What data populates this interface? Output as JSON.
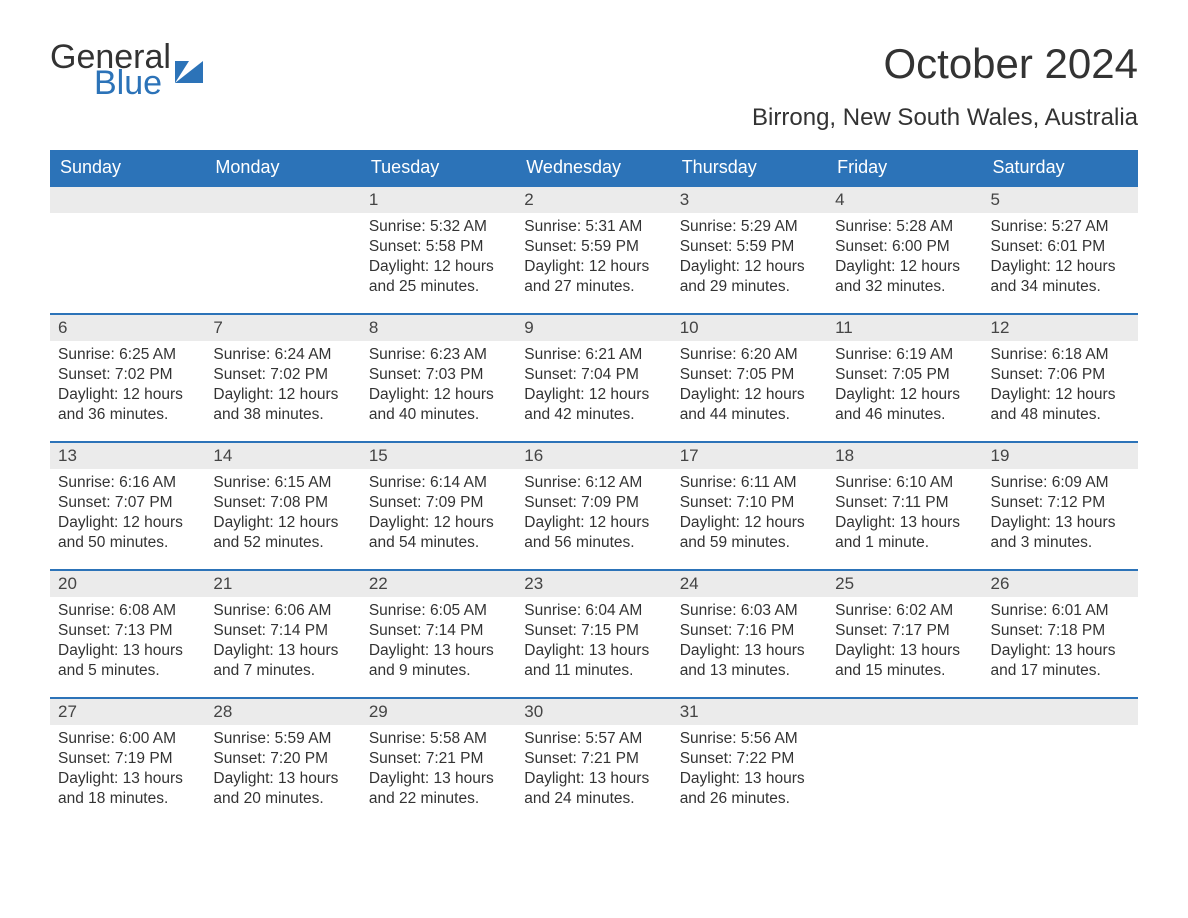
{
  "logo": {
    "word1": "General",
    "word2": "Blue"
  },
  "title": "October 2024",
  "location": "Birrong, New South Wales, Australia",
  "colors": {
    "header_bg": "#2c73b8",
    "header_text": "#ffffff",
    "daynum_bg": "#ebebeb",
    "top_rule": "#2c73b8",
    "body_text": "#333333",
    "page_bg": "#ffffff"
  },
  "day_headers": [
    "Sunday",
    "Monday",
    "Tuesday",
    "Wednesday",
    "Thursday",
    "Friday",
    "Saturday"
  ],
  "weeks": [
    [
      null,
      null,
      {
        "n": "1",
        "sunrise": "Sunrise: 5:32 AM",
        "sunset": "Sunset: 5:58 PM",
        "daylight": "Daylight: 12 hours and 25 minutes."
      },
      {
        "n": "2",
        "sunrise": "Sunrise: 5:31 AM",
        "sunset": "Sunset: 5:59 PM",
        "daylight": "Daylight: 12 hours and 27 minutes."
      },
      {
        "n": "3",
        "sunrise": "Sunrise: 5:29 AM",
        "sunset": "Sunset: 5:59 PM",
        "daylight": "Daylight: 12 hours and 29 minutes."
      },
      {
        "n": "4",
        "sunrise": "Sunrise: 5:28 AM",
        "sunset": "Sunset: 6:00 PM",
        "daylight": "Daylight: 12 hours and 32 minutes."
      },
      {
        "n": "5",
        "sunrise": "Sunrise: 5:27 AM",
        "sunset": "Sunset: 6:01 PM",
        "daylight": "Daylight: 12 hours and 34 minutes."
      }
    ],
    [
      {
        "n": "6",
        "sunrise": "Sunrise: 6:25 AM",
        "sunset": "Sunset: 7:02 PM",
        "daylight": "Daylight: 12 hours and 36 minutes."
      },
      {
        "n": "7",
        "sunrise": "Sunrise: 6:24 AM",
        "sunset": "Sunset: 7:02 PM",
        "daylight": "Daylight: 12 hours and 38 minutes."
      },
      {
        "n": "8",
        "sunrise": "Sunrise: 6:23 AM",
        "sunset": "Sunset: 7:03 PM",
        "daylight": "Daylight: 12 hours and 40 minutes."
      },
      {
        "n": "9",
        "sunrise": "Sunrise: 6:21 AM",
        "sunset": "Sunset: 7:04 PM",
        "daylight": "Daylight: 12 hours and 42 minutes."
      },
      {
        "n": "10",
        "sunrise": "Sunrise: 6:20 AM",
        "sunset": "Sunset: 7:05 PM",
        "daylight": "Daylight: 12 hours and 44 minutes."
      },
      {
        "n": "11",
        "sunrise": "Sunrise: 6:19 AM",
        "sunset": "Sunset: 7:05 PM",
        "daylight": "Daylight: 12 hours and 46 minutes."
      },
      {
        "n": "12",
        "sunrise": "Sunrise: 6:18 AM",
        "sunset": "Sunset: 7:06 PM",
        "daylight": "Daylight: 12 hours and 48 minutes."
      }
    ],
    [
      {
        "n": "13",
        "sunrise": "Sunrise: 6:16 AM",
        "sunset": "Sunset: 7:07 PM",
        "daylight": "Daylight: 12 hours and 50 minutes."
      },
      {
        "n": "14",
        "sunrise": "Sunrise: 6:15 AM",
        "sunset": "Sunset: 7:08 PM",
        "daylight": "Daylight: 12 hours and 52 minutes."
      },
      {
        "n": "15",
        "sunrise": "Sunrise: 6:14 AM",
        "sunset": "Sunset: 7:09 PM",
        "daylight": "Daylight: 12 hours and 54 minutes."
      },
      {
        "n": "16",
        "sunrise": "Sunrise: 6:12 AM",
        "sunset": "Sunset: 7:09 PM",
        "daylight": "Daylight: 12 hours and 56 minutes."
      },
      {
        "n": "17",
        "sunrise": "Sunrise: 6:11 AM",
        "sunset": "Sunset: 7:10 PM",
        "daylight": "Daylight: 12 hours and 59 minutes."
      },
      {
        "n": "18",
        "sunrise": "Sunrise: 6:10 AM",
        "sunset": "Sunset: 7:11 PM",
        "daylight": "Daylight: 13 hours and 1 minute."
      },
      {
        "n": "19",
        "sunrise": "Sunrise: 6:09 AM",
        "sunset": "Sunset: 7:12 PM",
        "daylight": "Daylight: 13 hours and 3 minutes."
      }
    ],
    [
      {
        "n": "20",
        "sunrise": "Sunrise: 6:08 AM",
        "sunset": "Sunset: 7:13 PM",
        "daylight": "Daylight: 13 hours and 5 minutes."
      },
      {
        "n": "21",
        "sunrise": "Sunrise: 6:06 AM",
        "sunset": "Sunset: 7:14 PM",
        "daylight": "Daylight: 13 hours and 7 minutes."
      },
      {
        "n": "22",
        "sunrise": "Sunrise: 6:05 AM",
        "sunset": "Sunset: 7:14 PM",
        "daylight": "Daylight: 13 hours and 9 minutes."
      },
      {
        "n": "23",
        "sunrise": "Sunrise: 6:04 AM",
        "sunset": "Sunset: 7:15 PM",
        "daylight": "Daylight: 13 hours and 11 minutes."
      },
      {
        "n": "24",
        "sunrise": "Sunrise: 6:03 AM",
        "sunset": "Sunset: 7:16 PM",
        "daylight": "Daylight: 13 hours and 13 minutes."
      },
      {
        "n": "25",
        "sunrise": "Sunrise: 6:02 AM",
        "sunset": "Sunset: 7:17 PM",
        "daylight": "Daylight: 13 hours and 15 minutes."
      },
      {
        "n": "26",
        "sunrise": "Sunrise: 6:01 AM",
        "sunset": "Sunset: 7:18 PM",
        "daylight": "Daylight: 13 hours and 17 minutes."
      }
    ],
    [
      {
        "n": "27",
        "sunrise": "Sunrise: 6:00 AM",
        "sunset": "Sunset: 7:19 PM",
        "daylight": "Daylight: 13 hours and 18 minutes."
      },
      {
        "n": "28",
        "sunrise": "Sunrise: 5:59 AM",
        "sunset": "Sunset: 7:20 PM",
        "daylight": "Daylight: 13 hours and 20 minutes."
      },
      {
        "n": "29",
        "sunrise": "Sunrise: 5:58 AM",
        "sunset": "Sunset: 7:21 PM",
        "daylight": "Daylight: 13 hours and 22 minutes."
      },
      {
        "n": "30",
        "sunrise": "Sunrise: 5:57 AM",
        "sunset": "Sunset: 7:21 PM",
        "daylight": "Daylight: 13 hours and 24 minutes."
      },
      {
        "n": "31",
        "sunrise": "Sunrise: 5:56 AM",
        "sunset": "Sunset: 7:22 PM",
        "daylight": "Daylight: 13 hours and 26 minutes."
      },
      null,
      null
    ]
  ]
}
